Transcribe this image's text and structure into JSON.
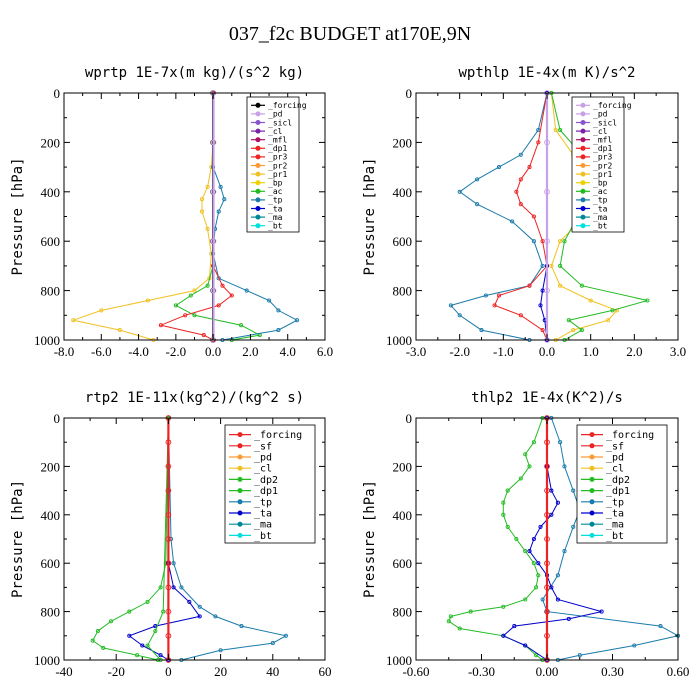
{
  "figure_title": "037_f2c  BUDGET at170E,9N",
  "colors": {
    "forcing": "#ff2222",
    "pd": "#c8a0e8",
    "sicl": "#8855cc",
    "cl": "#7a22aa",
    "mfl": "#aa1166",
    "dp1": "#ee2222",
    "pr3": "#ee2222",
    "pr2": "#ff9933",
    "pr1": "#f0c020",
    "bp": "#f0d000",
    "ac": "#22bb22",
    "tp": "#1a7aaa",
    "ta": "#0000cc",
    "ma": "#008899",
    "bt": "#00e0e0",
    "sf": "#ee2222",
    "dp2": "#22bb22",
    "forcing_black": "#000000"
  },
  "chart_data": [
    {
      "type": "line",
      "title": "wprtp  1E-7x(m kg)/(s^2 kg)",
      "ylabel": "Pressure [hPa]",
      "xlim": [
        -8,
        6
      ],
      "ylim": [
        1000,
        0
      ],
      "xticks": [
        "-8.0",
        "-6.0",
        "-4.0",
        "-2.0",
        "0.0",
        "2.0",
        "4.0",
        "6.0"
      ],
      "xtick_values": [
        -8,
        -6,
        -4,
        -2,
        0,
        2,
        4,
        6
      ],
      "yticks": [
        "0",
        "200",
        "400",
        "600",
        "800",
        "1000"
      ],
      "ytick_values": [
        0,
        200,
        400,
        600,
        800,
        1000
      ],
      "legend": [
        "_forcing",
        "_pd",
        "_sicl",
        "_cl",
        "_mfl",
        "_dp1",
        "_pr3",
        "_pr2",
        "_pr1",
        "_bp",
        "_ac",
        "_tp",
        "_ta",
        "_ma",
        "_bt"
      ],
      "legend_colors": [
        "#000000",
        "#c8a0e8",
        "#8855cc",
        "#7a22aa",
        "#aa1166",
        "#ee2222",
        "#ee2222",
        "#ff9933",
        "#f0c020",
        "#f0d000",
        "#22bb22",
        "#1a7aaa",
        "#0000cc",
        "#008899",
        "#00e0e0"
      ],
      "series": [
        {
          "name": "_pr1",
          "color": "#f0c020",
          "p": [
            0,
            200,
            300,
            380,
            430,
            480,
            550,
            650,
            750,
            800,
            840,
            880,
            920,
            960,
            1000
          ],
          "x": [
            0,
            0,
            -0.1,
            -0.3,
            -0.6,
            -0.6,
            -0.3,
            -0.1,
            -0.2,
            -1.0,
            -3.5,
            -6.0,
            -7.5,
            -5.0,
            -3.2
          ]
        },
        {
          "name": "_ac",
          "color": "#22bb22",
          "p": [
            0,
            700,
            780,
            820,
            860,
            900,
            940,
            980,
            1000
          ],
          "x": [
            0,
            0,
            -0.3,
            -1.2,
            -2.0,
            -1.0,
            1.5,
            2.5,
            1.0
          ]
        },
        {
          "name": "_tp",
          "color": "#1a7aaa",
          "p": [
            0,
            300,
            380,
            430,
            480,
            550,
            650,
            750,
            800,
            840,
            880,
            920,
            960,
            1000
          ],
          "x": [
            0,
            0,
            0.4,
            0.6,
            0.3,
            0.1,
            0,
            0.3,
            1.8,
            3.0,
            3.5,
            4.5,
            3.5,
            0.5
          ]
        },
        {
          "name": "_dp1",
          "color": "#ee2222",
          "p": [
            0,
            700,
            780,
            820,
            860,
            900,
            940,
            980,
            1000
          ],
          "x": [
            0,
            0,
            0.5,
            1.0,
            0.3,
            -1.5,
            -2.8,
            -0.5,
            0
          ]
        },
        {
          "name": "_forcing",
          "color": "#000000",
          "p": [
            0,
            200,
            400,
            600,
            800,
            1000
          ],
          "x": [
            0,
            0,
            0,
            0,
            0,
            0
          ]
        },
        {
          "name": "_pd",
          "color": "#c8a0e8",
          "p": [
            0,
            200,
            400,
            600,
            800,
            1000
          ],
          "x": [
            0.02,
            0.02,
            0.02,
            0.02,
            0.02,
            0.02
          ]
        }
      ]
    },
    {
      "type": "line",
      "title": "wpthlp  1E-4x(m K)/s^2",
      "ylabel": "Pressure [hPa]",
      "xlim": [
        -3,
        3
      ],
      "ylim": [
        1000,
        0
      ],
      "xticks": [
        "-3.0",
        "-2.0",
        "-1.0",
        "0.0",
        "1.0",
        "2.0",
        "3.0"
      ],
      "xtick_values": [
        -3,
        -2,
        -1,
        0,
        1,
        2,
        3
      ],
      "yticks": [
        "0",
        "200",
        "400",
        "600",
        "800",
        "1000"
      ],
      "ytick_values": [
        0,
        200,
        400,
        600,
        800,
        1000
      ],
      "legend": [
        "_forcing",
        "_pd",
        "_sicl",
        "_cl",
        "_mfl",
        "_dp1",
        "_pr3",
        "_pr2",
        "_pr1",
        "_bp",
        "_ac",
        "_tp",
        "_ta",
        "_ma",
        "_bt"
      ],
      "legend_colors": [
        "#c8a0e8",
        "#c8a0e8",
        "#8855cc",
        "#7a22aa",
        "#aa1166",
        "#ee2222",
        "#ee2222",
        "#ff9933",
        "#f0c020",
        "#f0d000",
        "#22bb22",
        "#1a7aaa",
        "#0000cc",
        "#008899",
        "#00e0e0"
      ],
      "series": [
        {
          "name": "_pr1",
          "color": "#f0c020",
          "p": [
            0,
            150,
            250,
            330,
            380,
            420,
            470,
            530,
            600,
            700,
            780,
            840,
            880,
            920,
            960,
            1000
          ],
          "x": [
            0.1,
            0.2,
            0.6,
            1.2,
            1.6,
            1.7,
            1.3,
            0.7,
            0.3,
            0.1,
            0.3,
            1.0,
            1.6,
            1.4,
            0.6,
            0.2
          ]
        },
        {
          "name": "_ac",
          "color": "#22bb22",
          "p": [
            0,
            150,
            250,
            300,
            380,
            420,
            500,
            600,
            700,
            780,
            840,
            880,
            920,
            960,
            1000
          ],
          "x": [
            0.1,
            0.3,
            0.8,
            1.1,
            1.3,
            1.2,
            0.7,
            0.4,
            0.3,
            0.8,
            2.3,
            1.5,
            0.5,
            0.8,
            0.4
          ]
        },
        {
          "name": "_tp",
          "color": "#1a7aaa",
          "p": [
            0,
            150,
            250,
            300,
            350,
            400,
            450,
            520,
            600,
            700,
            780,
            820,
            860,
            900,
            960,
            1000
          ],
          "x": [
            0,
            -0.2,
            -0.6,
            -1.1,
            -1.6,
            -2.0,
            -1.6,
            -0.8,
            -0.3,
            -0.1,
            -0.4,
            -1.4,
            -2.2,
            -2.0,
            -1.5,
            -0.4
          ]
        },
        {
          "name": "_dp1",
          "color": "#ee2222",
          "p": [
            0,
            200,
            300,
            350,
            400,
            450,
            500,
            600,
            700,
            780,
            820,
            860,
            900,
            960,
            1000
          ],
          "x": [
            0,
            -0.2,
            -0.4,
            -0.6,
            -0.7,
            -0.6,
            -0.3,
            -0.1,
            0,
            -0.4,
            -1.1,
            -1.2,
            -0.6,
            -0.1,
            0
          ]
        },
        {
          "name": "_ta",
          "color": "#0000cc",
          "p": [
            0,
            700,
            800,
            860,
            920,
            1000
          ],
          "x": [
            0,
            0,
            -0.1,
            -0.15,
            -0.05,
            0
          ]
        },
        {
          "name": "_pd",
          "color": "#c8a0e8",
          "p": [
            0,
            200,
            400,
            600,
            800,
            1000
          ],
          "x": [
            0,
            0,
            0,
            0,
            0,
            0
          ]
        }
      ]
    },
    {
      "type": "line",
      "title": "rtp2  1E-11x(kg^2)/(kg^2 s)",
      "ylabel": "Pressure [hPa]",
      "xlim": [
        -40,
        60
      ],
      "ylim": [
        1000,
        0
      ],
      "xticks": [
        "-40",
        "-20",
        "0",
        "20",
        "40",
        "60"
      ],
      "xtick_values": [
        -40,
        -20,
        0,
        20,
        40,
        60
      ],
      "yticks": [
        "0",
        "200",
        "400",
        "600",
        "800",
        "1000"
      ],
      "ytick_values": [
        0,
        200,
        400,
        600,
        800,
        1000
      ],
      "legend": [
        "_forcing",
        "_sf",
        "_pd",
        "_cl",
        "_dp2",
        "_dp1",
        "_tp",
        "_ta",
        "_ma",
        "_bt"
      ],
      "legend_colors": [
        "#ee2222",
        "#ee2222",
        "#ff9933",
        "#f0c020",
        "#22bb22",
        "#22bb22",
        "#1a7aaa",
        "#0000cc",
        "#008899",
        "#00e0e0"
      ],
      "series": [
        {
          "name": "_dp1",
          "color": "#22bb22",
          "p": [
            0,
            600,
            700,
            760,
            800,
            840,
            880,
            920,
            950,
            980,
            1000
          ],
          "x": [
            0,
            -1,
            -3,
            -8,
            -15,
            -22,
            -27,
            -29,
            -25,
            -12,
            -4
          ]
        },
        {
          "name": "_tp",
          "color": "#1a7aaa",
          "p": [
            0,
            500,
            600,
            700,
            780,
            820,
            860,
            900,
            930,
            960,
            1000
          ],
          "x": [
            0,
            1,
            2,
            5,
            12,
            18,
            28,
            45,
            40,
            20,
            5
          ]
        },
        {
          "name": "_ta",
          "color": "#0000cc",
          "p": [
            0,
            600,
            700,
            760,
            820,
            860,
            900,
            940,
            980,
            1000
          ],
          "x": [
            0,
            0,
            2,
            8,
            12,
            -5,
            -15,
            -10,
            -3,
            0
          ]
        },
        {
          "name": "_dp2",
          "color": "#22bb22",
          "p": [
            0,
            800,
            880,
            940,
            1000
          ],
          "x": [
            0,
            -2,
            -5,
            -8,
            -3
          ]
        },
        {
          "name": "_forcing",
          "color": "#ee2222",
          "p": [
            0,
            100,
            200,
            300,
            400,
            500,
            600,
            700,
            800,
            900,
            1000
          ],
          "x": [
            0,
            0,
            0,
            0,
            0,
            0,
            0,
            0,
            0,
            0,
            0
          ]
        }
      ]
    },
    {
      "type": "line",
      "title": "thlp2  1E-4x(K^2)/s",
      "ylabel": "Pressure [hPa]",
      "xlim": [
        -0.6,
        0.6
      ],
      "ylim": [
        1000,
        0
      ],
      "xticks": [
        "-0.60",
        "-0.30",
        "0.00",
        "0.30",
        "0.60"
      ],
      "xtick_values": [
        -0.6,
        -0.3,
        0,
        0.3,
        0.6
      ],
      "yticks": [
        "0",
        "200",
        "400",
        "600",
        "800",
        "1000"
      ],
      "ytick_values": [
        0,
        200,
        400,
        600,
        800,
        1000
      ],
      "legend": [
        "_forcing",
        "_sf",
        "_pd",
        "_cl",
        "_dp2",
        "_dp1",
        "_tp",
        "_ta",
        "_ma",
        "_bt"
      ],
      "legend_colors": [
        "#ee2222",
        "#ee2222",
        "#ff9933",
        "#f0c020",
        "#22bb22",
        "#22bb22",
        "#1a7aaa",
        "#0000cc",
        "#008899",
        "#00e0e0"
      ],
      "series": [
        {
          "name": "_dp1",
          "color": "#22bb22",
          "p": [
            0,
            100,
            150,
            200,
            250,
            300,
            350,
            400,
            450,
            500,
            550,
            600,
            650,
            700,
            750,
            780,
            800,
            820,
            840,
            870,
            900,
            940,
            980,
            1000
          ],
          "x": [
            -0.02,
            -0.06,
            -0.1,
            -0.08,
            -0.12,
            -0.18,
            -0.2,
            -0.2,
            -0.18,
            -0.14,
            -0.1,
            -0.06,
            -0.04,
            -0.05,
            -0.1,
            -0.2,
            -0.35,
            -0.44,
            -0.45,
            -0.4,
            -0.2,
            -0.1,
            -0.05,
            -0.02
          ]
        },
        {
          "name": "_tp",
          "color": "#1a7aaa",
          "p": [
            0,
            100,
            200,
            300,
            380,
            450,
            550,
            650,
            750,
            800,
            860,
            900,
            940,
            980,
            1000
          ],
          "x": [
            0.02,
            0.06,
            0.08,
            0.12,
            0.15,
            0.12,
            0.08,
            0.05,
            -0.02,
            0.0,
            0.52,
            0.6,
            0.4,
            0.15,
            0.05
          ]
        },
        {
          "name": "_ta",
          "color": "#0000cc",
          "p": [
            0,
            200,
            300,
            350,
            400,
            450,
            500,
            550,
            600,
            650,
            700,
            750,
            800,
            830,
            860,
            900,
            940,
            1000
          ],
          "x": [
            0,
            0,
            0.02,
            0.05,
            0.02,
            -0.03,
            -0.06,
            -0.08,
            -0.04,
            0,
            0.02,
            0.05,
            0.25,
            0.1,
            -0.15,
            -0.2,
            -0.1,
            0
          ]
        },
        {
          "name": "_forcing",
          "color": "#ee2222",
          "p": [
            0,
            100,
            200,
            300,
            400,
            500,
            600,
            700,
            800,
            900,
            1000
          ],
          "x": [
            0,
            0,
            0,
            0,
            0,
            0,
            0,
            0,
            0,
            0,
            0
          ]
        }
      ]
    }
  ]
}
